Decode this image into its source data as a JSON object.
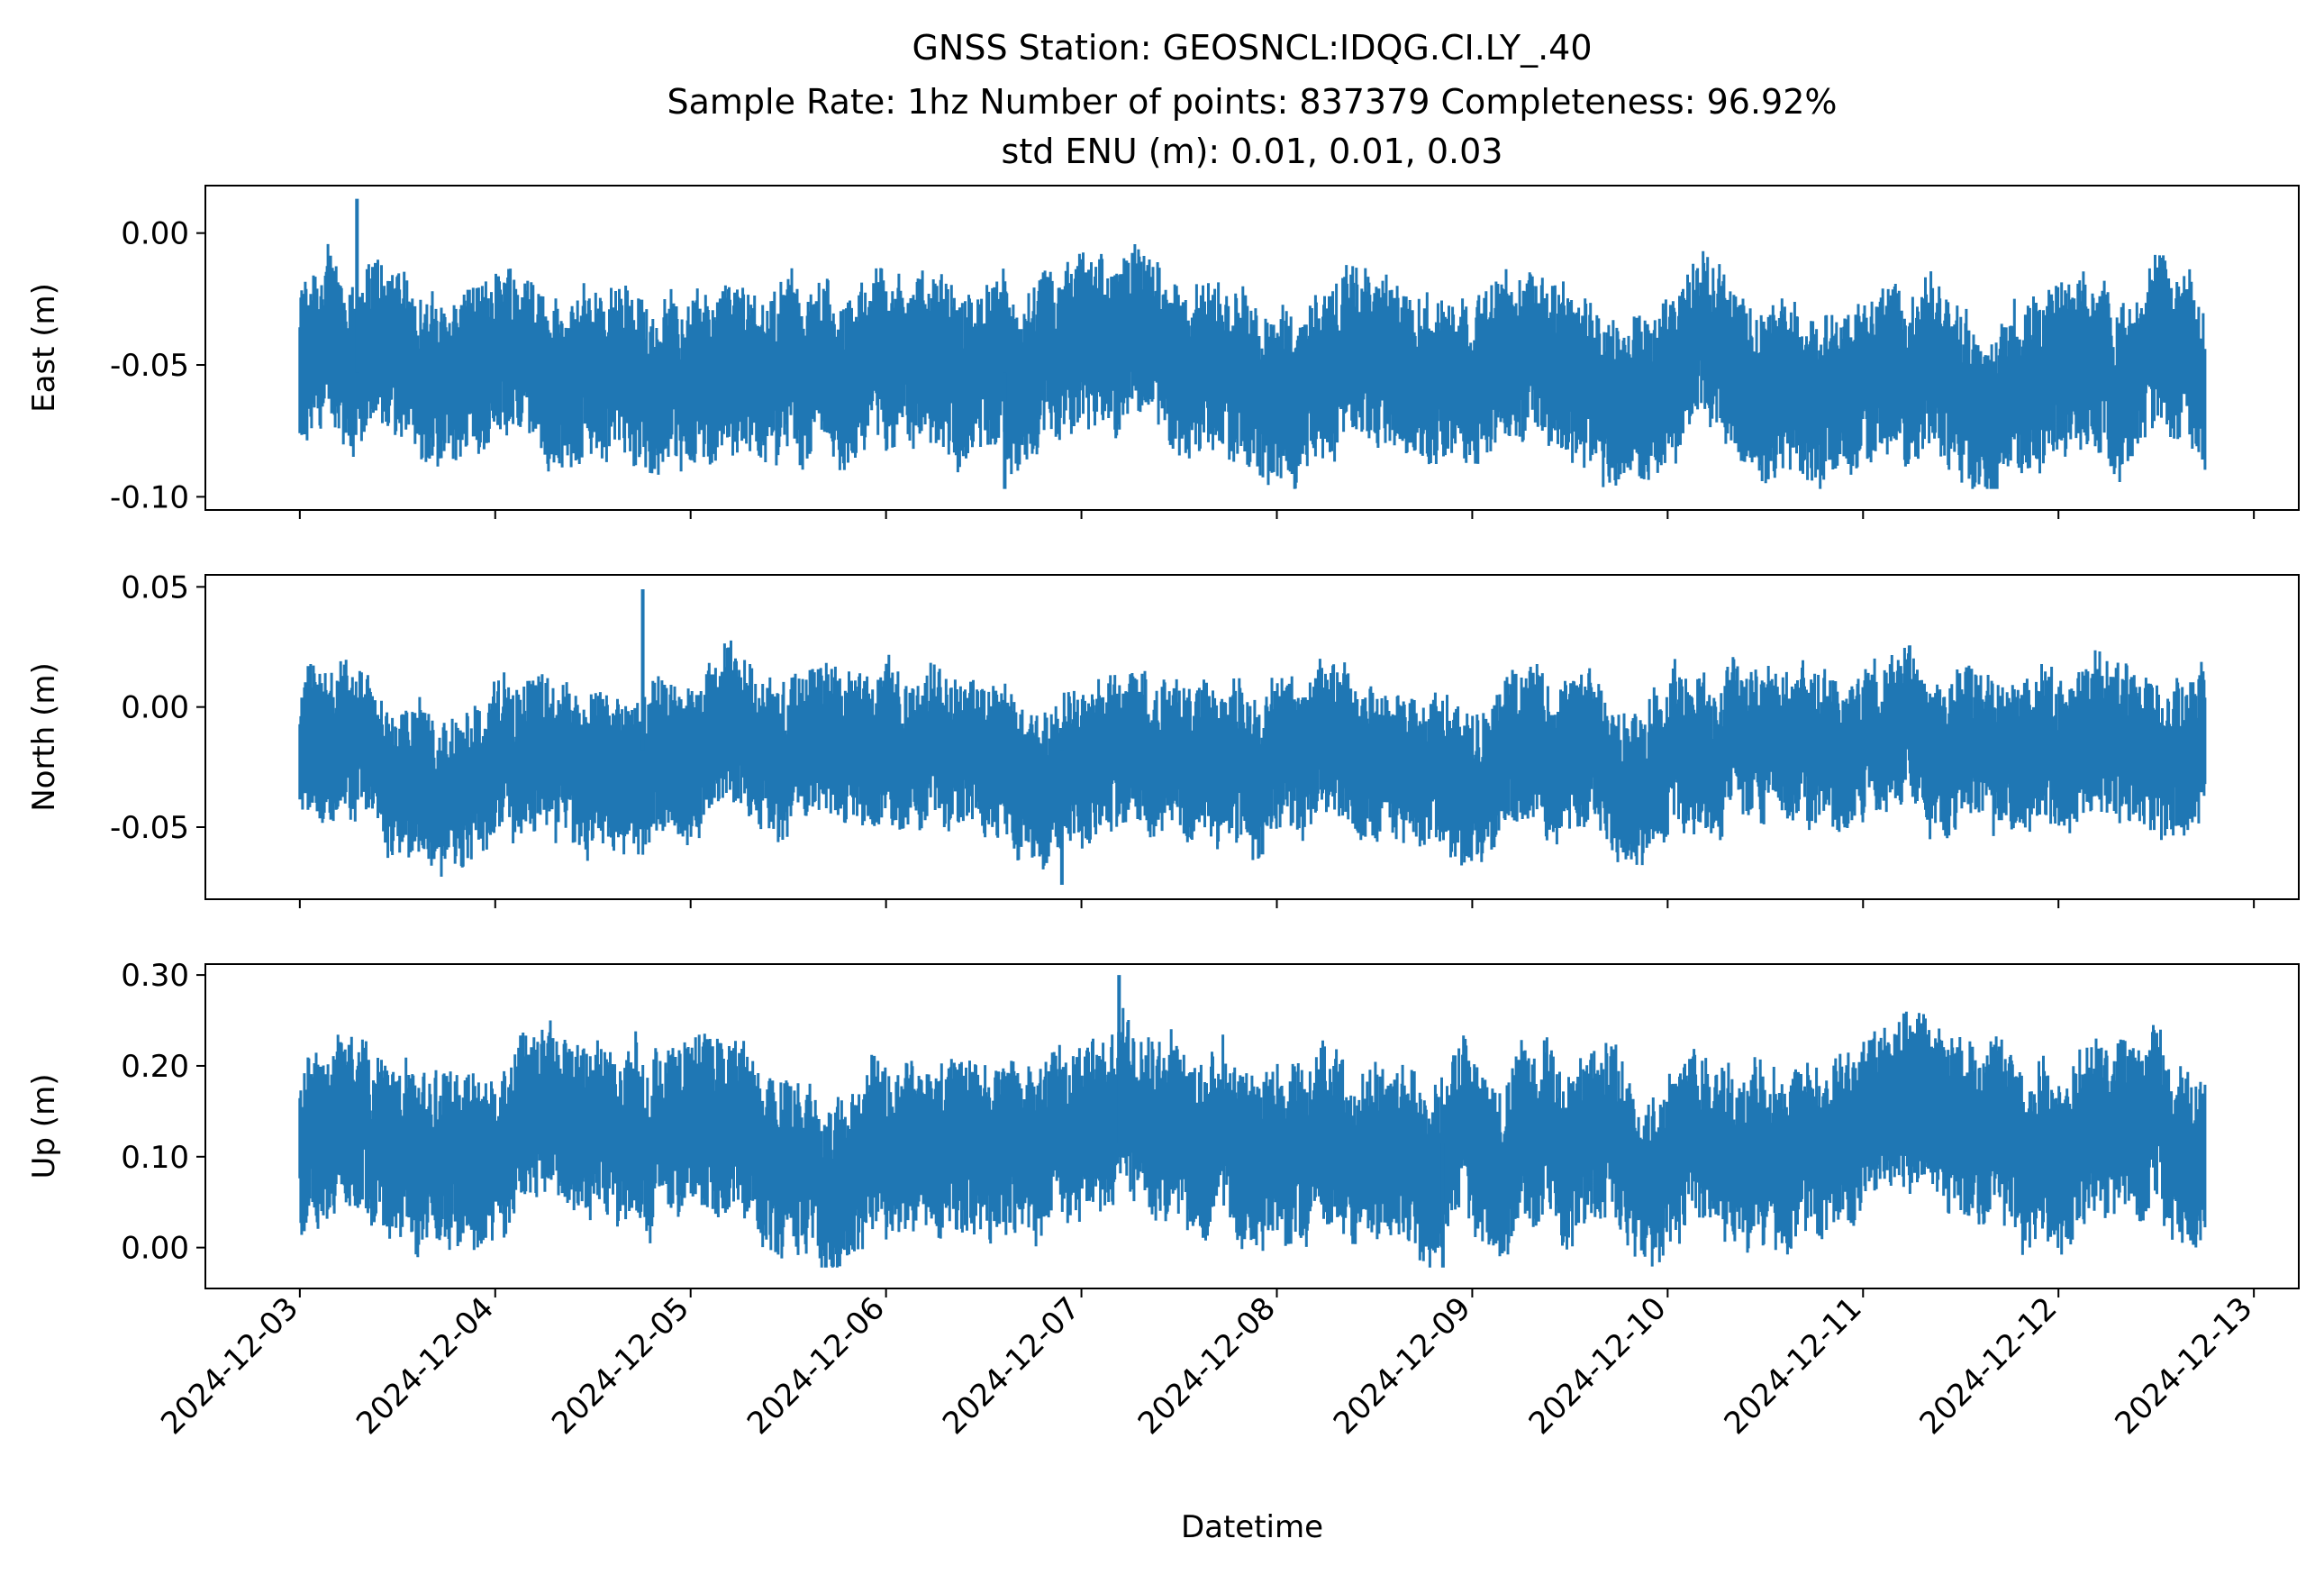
{
  "title_lines": [
    "GNSS Station: GEOSNCL:IDQG.CI.LY_.40",
    "Sample Rate: 1hz   Number of points: 837379    Completeness:  96.92%",
    "std ENU (m):  0.01, 0.01, 0.03"
  ],
  "chart_data": {
    "type": "line",
    "title": "GNSS Station: GEOSNCL:IDQG.CI.LY_.40 | Sample Rate: 1hz   Number of points: 837379    Completeness:  96.92% | std ENU (m):  0.01, 0.01, 0.03",
    "xlabel": "Datetime",
    "x_ticks": [
      "2024-12-03",
      "2024-12-04",
      "2024-12-05",
      "2024-12-06",
      "2024-12-07",
      "2024-12-08",
      "2024-12-09",
      "2024-12-10",
      "2024-12-11",
      "2024-12-12",
      "2024-12-13"
    ],
    "xlim": [
      "2024-12-02T12:24",
      "2024-12-13T05:31"
    ],
    "data_start": "2024-12-03T00:00",
    "data_end": "2024-12-12T18:00",
    "sample_rate": "1hz",
    "number_of_points": 837379,
    "completeness_percent": 96.92,
    "series_color": "#1f77b4",
    "subplots": [
      {
        "ylabel": "East (m)",
        "ylim": [
          -0.105,
          0.018
        ],
        "yticks": [
          -0.1,
          -0.05,
          0.0
        ],
        "ytick_labels": [
          "-0.10",
          "-0.05",
          "0.00"
        ],
        "mean": -0.053,
        "min": -0.097,
        "max": 0.013,
        "std": 0.01
      },
      {
        "ylabel": "North (m)",
        "ylim": [
          -0.08,
          0.055
        ],
        "yticks": [
          -0.05,
          0.0,
          0.05
        ],
        "ytick_labels": [
          "-0.05",
          "0.00",
          "0.05"
        ],
        "mean": -0.018,
        "min": -0.074,
        "max": 0.049,
        "std": 0.01
      },
      {
        "ylabel": "Up (m)",
        "ylim": [
          -0.045,
          0.312
        ],
        "yticks": [
          0.0,
          0.1,
          0.2,
          0.3
        ],
        "ytick_labels": [
          "0.00",
          "0.10",
          "0.20",
          "0.30"
        ],
        "mean": 0.115,
        "min": -0.022,
        "max": 0.3,
        "std": 0.03
      }
    ]
  }
}
